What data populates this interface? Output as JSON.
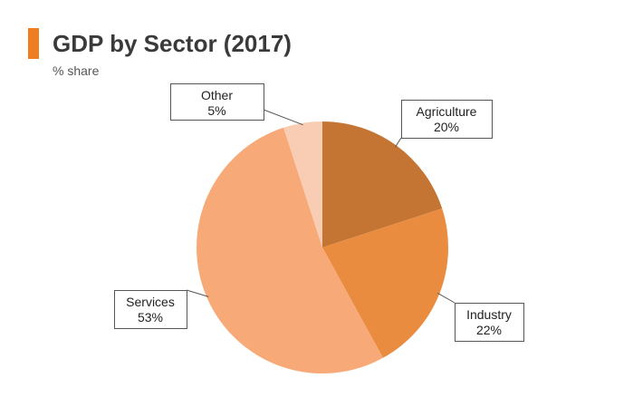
{
  "header": {
    "title": "GDP by Sector (2017)",
    "subtitle": "% share",
    "accent_color": "#ef7d22"
  },
  "chart_data": {
    "type": "pie",
    "title": "GDP by Sector (2017)",
    "subtitle": "% share",
    "legend": "none",
    "slices": [
      {
        "label": "Agriculture",
        "value": 20,
        "value_label": "20%",
        "color": "#c47533"
      },
      {
        "label": "Industry",
        "value": 22,
        "value_label": "22%",
        "color": "#ea8c40"
      },
      {
        "label": "Services",
        "value": 53,
        "value_label": "53%",
        "color": "#f7aa78"
      },
      {
        "label": "Other",
        "value": 5,
        "value_label": "5%",
        "color": "#f9cdb3"
      }
    ]
  }
}
